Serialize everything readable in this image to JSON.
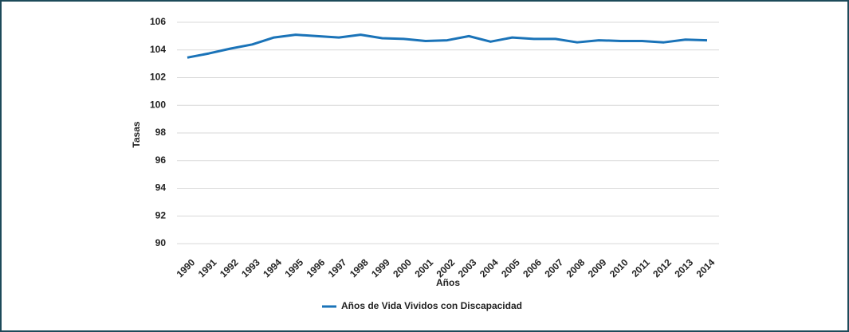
{
  "chart_data": {
    "type": "line",
    "y_label": "Tasas",
    "x_label": "Años",
    "categories": [
      "1990",
      "1991",
      "1992",
      "1993",
      "1994",
      "1995",
      "1996",
      "1997",
      "1998",
      "1999",
      "2000",
      "2001",
      "2002",
      "2003",
      "2004",
      "2005",
      "2006",
      "2007",
      "2008",
      "2009",
      "2010",
      "2011",
      "2012",
      "2013",
      "2014"
    ],
    "series": [
      {
        "name": "Años de Vida Vividos con Discapacidad",
        "color": "#1a73b8",
        "values": [
          103.45,
          103.75,
          104.1,
          104.4,
          104.9,
          105.1,
          105.0,
          104.9,
          105.1,
          104.85,
          104.8,
          104.65,
          104.7,
          105.0,
          104.6,
          104.9,
          104.8,
          104.8,
          104.55,
          104.7,
          104.65,
          104.65,
          104.55,
          104.75,
          104.7
        ]
      }
    ],
    "ylim": [
      90,
      106
    ],
    "yticks": [
      90,
      92,
      94,
      96,
      98,
      100,
      102,
      104,
      106
    ],
    "grid": true,
    "legend": "bottom"
  }
}
